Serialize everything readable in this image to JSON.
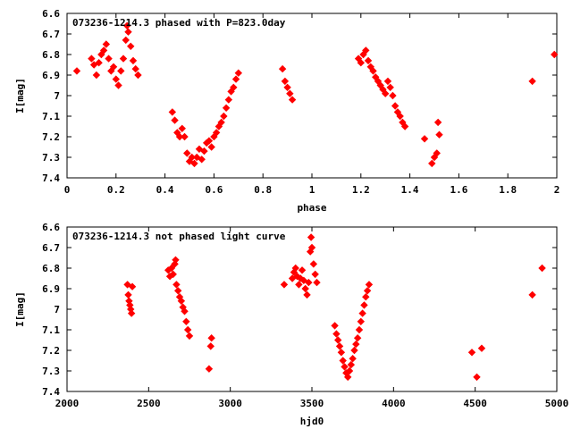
{
  "chart_data": [
    {
      "type": "scatter",
      "title": "073236-1214.3 phased with P=823.0day",
      "xlabel": "phase",
      "ylabel": "I[mag]",
      "xlim": [
        0,
        2
      ],
      "ylim": [
        6.6,
        7.4
      ],
      "y_inverted": true,
      "grid": false,
      "legend": "none",
      "marker": "diamond",
      "color": "#ff0000",
      "x_ticks": [
        "0",
        "0.2",
        "0.4",
        "0.6",
        "0.8",
        "1",
        "1.2",
        "1.4",
        "1.6",
        "1.8",
        "2"
      ],
      "y_ticks": [
        "6.6",
        "6.7",
        "6.8",
        "6.9",
        "7",
        "7.1",
        "7.2",
        "7.3",
        "7.4"
      ],
      "series": [
        {
          "points": [
            [
              0.04,
              6.88
            ],
            [
              0.1,
              6.82
            ],
            [
              0.11,
              6.85
            ],
            [
              0.12,
              6.9
            ],
            [
              0.13,
              6.84
            ],
            [
              0.14,
              6.8
            ],
            [
              0.15,
              6.78
            ],
            [
              0.16,
              6.75
            ],
            [
              0.17,
              6.82
            ],
            [
              0.18,
              6.88
            ],
            [
              0.19,
              6.86
            ],
            [
              0.2,
              6.92
            ],
            [
              0.21,
              6.95
            ],
            [
              0.22,
              6.88
            ],
            [
              0.23,
              6.82
            ],
            [
              0.24,
              6.73
            ],
            [
              0.245,
              6.66
            ],
            [
              0.25,
              6.69
            ],
            [
              0.26,
              6.76
            ],
            [
              0.27,
              6.83
            ],
            [
              0.28,
              6.87
            ],
            [
              0.29,
              6.9
            ],
            [
              0.43,
              7.08
            ],
            [
              0.44,
              7.12
            ],
            [
              0.45,
              7.18
            ],
            [
              0.46,
              7.2
            ],
            [
              0.47,
              7.16
            ],
            [
              0.48,
              7.2
            ],
            [
              0.49,
              7.28
            ],
            [
              0.5,
              7.32
            ],
            [
              0.51,
              7.3
            ],
            [
              0.52,
              7.33
            ],
            [
              0.53,
              7.3
            ],
            [
              0.54,
              7.26
            ],
            [
              0.55,
              7.31
            ],
            [
              0.56,
              7.27
            ],
            [
              0.57,
              7.23
            ],
            [
              0.58,
              7.22
            ],
            [
              0.59,
              7.25
            ],
            [
              0.6,
              7.2
            ],
            [
              0.61,
              7.18
            ],
            [
              0.62,
              7.15
            ],
            [
              0.63,
              7.13
            ],
            [
              0.64,
              7.1
            ],
            [
              0.65,
              7.06
            ],
            [
              0.66,
              7.02
            ],
            [
              0.67,
              6.98
            ],
            [
              0.68,
              6.96
            ],
            [
              0.69,
              6.92
            ],
            [
              0.7,
              6.89
            ],
            [
              0.88,
              6.87
            ],
            [
              0.89,
              6.93
            ],
            [
              0.9,
              6.96
            ],
            [
              0.91,
              6.99
            ],
            [
              0.92,
              7.02
            ],
            [
              1.19,
              6.82
            ],
            [
              1.2,
              6.84
            ],
            [
              1.21,
              6.8
            ],
            [
              1.22,
              6.78
            ],
            [
              1.23,
              6.83
            ],
            [
              1.24,
              6.86
            ],
            [
              1.25,
              6.88
            ],
            [
              1.26,
              6.91
            ],
            [
              1.27,
              6.93
            ],
            [
              1.28,
              6.95
            ],
            [
              1.29,
              6.97
            ],
            [
              1.3,
              6.99
            ],
            [
              1.31,
              6.93
            ],
            [
              1.32,
              6.96
            ],
            [
              1.33,
              7.0
            ],
            [
              1.34,
              7.05
            ],
            [
              1.35,
              7.08
            ],
            [
              1.36,
              7.1
            ],
            [
              1.37,
              7.13
            ],
            [
              1.38,
              7.15
            ],
            [
              1.46,
              7.21
            ],
            [
              1.49,
              7.33
            ],
            [
              1.5,
              7.3
            ],
            [
              1.51,
              7.28
            ],
            [
              1.515,
              7.13
            ],
            [
              1.52,
              7.19
            ],
            [
              1.9,
              6.93
            ],
            [
              1.99,
              6.8
            ]
          ]
        }
      ]
    },
    {
      "type": "scatter",
      "title": "073236-1214.3 not phased light curve",
      "xlabel": "hjd0",
      "ylabel": "I[mag]",
      "xlim": [
        2000,
        5000
      ],
      "ylim": [
        6.6,
        7.4
      ],
      "y_inverted": true,
      "grid": false,
      "legend": "none",
      "marker": "diamond",
      "color": "#ff0000",
      "x_ticks": [
        "2000",
        "2500",
        "3000",
        "3500",
        "4000",
        "4500",
        "5000"
      ],
      "y_ticks": [
        "6.6",
        "6.7",
        "6.8",
        "6.9",
        "7",
        "7.1",
        "7.2",
        "7.3",
        "7.4"
      ],
      "series": [
        {
          "points": [
            [
              2370,
              6.88
            ],
            [
              2375,
              6.93
            ],
            [
              2380,
              6.96
            ],
            [
              2385,
              6.98
            ],
            [
              2390,
              7.0
            ],
            [
              2395,
              7.02
            ],
            [
              2400,
              6.89
            ],
            [
              2620,
              6.81
            ],
            [
              2630,
              6.84
            ],
            [
              2640,
              6.8
            ],
            [
              2650,
              6.83
            ],
            [
              2660,
              6.78
            ],
            [
              2665,
              6.76
            ],
            [
              2670,
              6.88
            ],
            [
              2680,
              6.91
            ],
            [
              2690,
              6.94
            ],
            [
              2700,
              6.96
            ],
            [
              2710,
              6.99
            ],
            [
              2720,
              7.01
            ],
            [
              2730,
              7.06
            ],
            [
              2740,
              7.1
            ],
            [
              2750,
              7.13
            ],
            [
              2870,
              7.29
            ],
            [
              2880,
              7.18
            ],
            [
              2885,
              7.14
            ],
            [
              3330,
              6.88
            ],
            [
              3380,
              6.85
            ],
            [
              3390,
              6.82
            ],
            [
              3400,
              6.8
            ],
            [
              3410,
              6.84
            ],
            [
              3420,
              6.88
            ],
            [
              3430,
              6.85
            ],
            [
              3440,
              6.81
            ],
            [
              3450,
              6.86
            ],
            [
              3460,
              6.9
            ],
            [
              3470,
              6.93
            ],
            [
              3480,
              6.87
            ],
            [
              3490,
              6.72
            ],
            [
              3495,
              6.65
            ],
            [
              3500,
              6.7
            ],
            [
              3510,
              6.78
            ],
            [
              3520,
              6.83
            ],
            [
              3530,
              6.87
            ],
            [
              3640,
              7.08
            ],
            [
              3650,
              7.12
            ],
            [
              3660,
              7.15
            ],
            [
              3670,
              7.18
            ],
            [
              3680,
              7.21
            ],
            [
              3690,
              7.25
            ],
            [
              3700,
              7.28
            ],
            [
              3710,
              7.31
            ],
            [
              3720,
              7.33
            ],
            [
              3730,
              7.3
            ],
            [
              3740,
              7.27
            ],
            [
              3750,
              7.24
            ],
            [
              3760,
              7.2
            ],
            [
              3770,
              7.17
            ],
            [
              3780,
              7.14
            ],
            [
              3790,
              7.1
            ],
            [
              3800,
              7.06
            ],
            [
              3810,
              7.02
            ],
            [
              3820,
              6.98
            ],
            [
              3830,
              6.94
            ],
            [
              3840,
              6.91
            ],
            [
              3850,
              6.88
            ],
            [
              4480,
              7.21
            ],
            [
              4510,
              7.33
            ],
            [
              4540,
              7.19
            ],
            [
              4850,
              6.93
            ],
            [
              4910,
              6.8
            ]
          ]
        }
      ]
    }
  ]
}
